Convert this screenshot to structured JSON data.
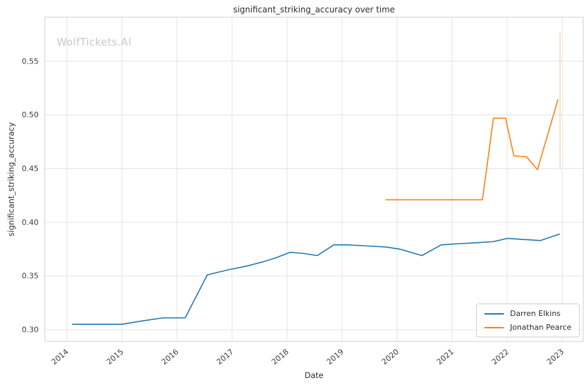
{
  "page": {
    "watermark": "WolfTickets.AI"
  },
  "chart_data": {
    "type": "line",
    "title": "significant_striking_accuracy over time",
    "xlabel": "Date",
    "ylabel": "significant_striking_accuracy",
    "xlim": [
      2013.6,
      2023.38
    ],
    "ylim": [
      0.289,
      0.591
    ],
    "grid": true,
    "legend_position": "lower right",
    "x_ticks": [
      {
        "value": 2014,
        "label": "2014"
      },
      {
        "value": 2015,
        "label": "2015"
      },
      {
        "value": 2016,
        "label": "2016"
      },
      {
        "value": 2017,
        "label": "2017"
      },
      {
        "value": 2018,
        "label": "2018"
      },
      {
        "value": 2019,
        "label": "2019"
      },
      {
        "value": 2020,
        "label": "2020"
      },
      {
        "value": 2021,
        "label": "2021"
      },
      {
        "value": 2022,
        "label": "2022"
      },
      {
        "value": 2023,
        "label": "2023"
      }
    ],
    "y_ticks": [
      {
        "value": 0.3,
        "label": "0.30"
      },
      {
        "value": 0.35,
        "label": "0.35"
      },
      {
        "value": 0.4,
        "label": "0.40"
      },
      {
        "value": 0.45,
        "label": "0.45"
      },
      {
        "value": 0.5,
        "label": "0.50"
      },
      {
        "value": 0.55,
        "label": "0.55"
      }
    ],
    "series": [
      {
        "name": "Darren Elkins",
        "color": "#1f77b4",
        "x": [
          2014.1,
          2014.6,
          2015.0,
          2015.35,
          2015.75,
          2016.15,
          2016.55,
          2016.95,
          2017.25,
          2017.55,
          2017.8,
          2018.05,
          2018.3,
          2018.55,
          2018.85,
          2019.1,
          2019.45,
          2019.8,
          2020.05,
          2020.45,
          2020.8,
          2021.1,
          2021.45,
          2021.75,
          2022.0,
          2022.3,
          2022.6,
          2022.95
        ],
        "y": [
          0.305,
          0.305,
          0.305,
          0.308,
          0.311,
          0.311,
          0.351,
          0.356,
          0.359,
          0.363,
          0.367,
          0.372,
          0.371,
          0.369,
          0.379,
          0.379,
          0.378,
          0.377,
          0.375,
          0.369,
          0.379,
          0.38,
          0.381,
          0.382,
          0.385,
          0.384,
          0.383,
          0.389
        ]
      },
      {
        "name": "Jonathan Pearce",
        "color": "#ff7f0e",
        "x": [
          2019.8,
          2021.55,
          2021.75,
          2021.97,
          2022.12,
          2022.35,
          2022.55,
          2022.92
        ],
        "y": [
          0.421,
          0.421,
          0.497,
          0.497,
          0.462,
          0.461,
          0.449,
          0.514
        ]
      }
    ],
    "annotations": [
      {
        "type": "vline",
        "x": 2022.96,
        "y0": 0.449,
        "y1": 0.577,
        "color": "#ffc38f",
        "width": 1
      }
    ]
  }
}
